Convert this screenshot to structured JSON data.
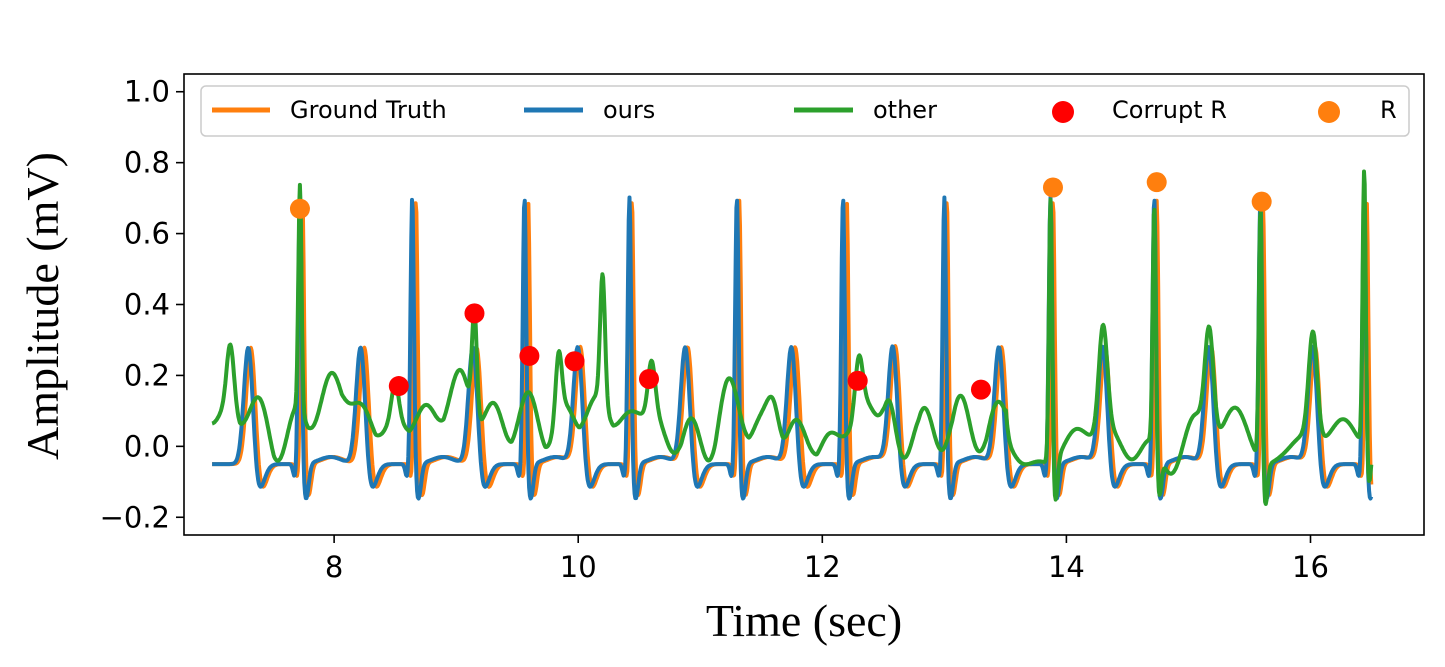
{
  "chart_data": {
    "type": "line",
    "title": "",
    "xlabel": "Time (sec)",
    "ylabel": "Amplitude (mV)",
    "xlim": [
      6.77,
      16.93
    ],
    "ylim": [
      -0.25,
      1.05
    ],
    "xticks": [
      8,
      10,
      12,
      14,
      16
    ],
    "yticks": [
      -0.2,
      0.0,
      0.2,
      0.4,
      0.6,
      0.8,
      1.0
    ],
    "xtick_labels": [
      "8",
      "10",
      "12",
      "14",
      "16"
    ],
    "ytick_labels": [
      "−0.2",
      "0.0",
      "0.2",
      "0.4",
      "0.6",
      "0.8",
      "1.0"
    ],
    "grid": false,
    "legend_position": "top",
    "beats": {
      "gt": [
        7.74,
        8.67,
        9.59,
        10.44,
        11.32,
        12.2,
        13.02,
        13.89,
        14.74,
        15.61,
        16.46
      ],
      "ours": [
        7.72,
        8.64,
        9.56,
        10.42,
        11.3,
        12.17,
        13.0,
        13.87,
        14.72,
        15.59,
        16.44
      ],
      "other": [
        7.72,
        9.15,
        10.2,
        13.87,
        14.72,
        15.59,
        16.44
      ]
    },
    "series": [
      {
        "name": "Ground Truth",
        "kind": "line",
        "color": "#ff7f0e"
      },
      {
        "name": "ours",
        "kind": "line",
        "color": "#1f77b4"
      },
      {
        "name": "other",
        "kind": "line",
        "color": "#2ca02c"
      },
      {
        "name": "Corrupt R",
        "kind": "scatter",
        "color": "#ff0000",
        "points": [
          [
            8.53,
            0.17
          ],
          [
            9.15,
            0.375
          ],
          [
            9.6,
            0.255
          ],
          [
            9.97,
            0.24
          ],
          [
            10.58,
            0.19
          ],
          [
            12.29,
            0.185
          ],
          [
            13.3,
            0.16
          ]
        ]
      },
      {
        "name": "R",
        "kind": "scatter",
        "color": "#ff7f0e",
        "points": [
          [
            7.72,
            0.67
          ],
          [
            13.89,
            0.73
          ],
          [
            14.74,
            0.745
          ],
          [
            15.6,
            0.69
          ]
        ]
      }
    ]
  }
}
